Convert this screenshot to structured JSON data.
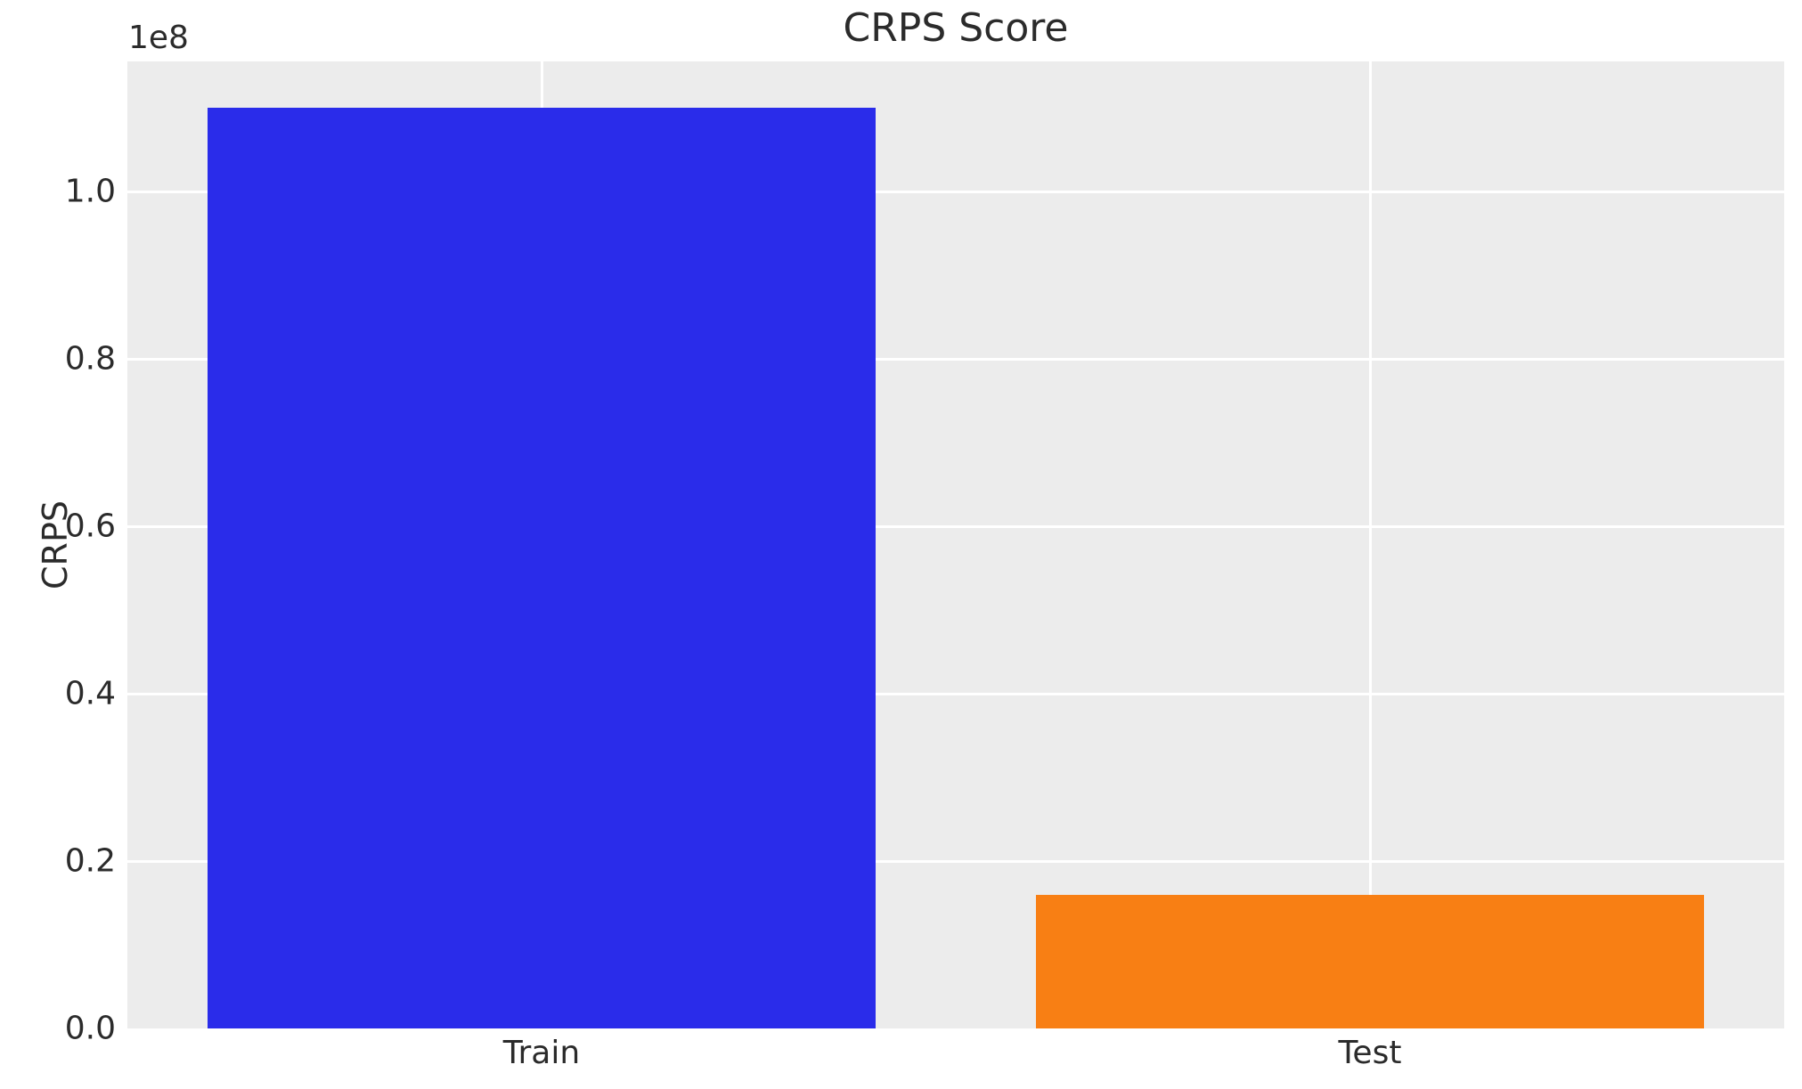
{
  "chart_data": {
    "type": "bar",
    "title": "CRPS Score",
    "xlabel": "",
    "ylabel": "CRPS",
    "y_offset_text": "1e8",
    "categories": [
      "Train",
      "Test"
    ],
    "series": [
      {
        "name": "CRPS",
        "values": [
          110000000,
          16000000
        ]
      }
    ],
    "bar_colors": [
      "#2a2cea",
      "#f87f14"
    ],
    "ylim": [
      0,
      115500000
    ],
    "yticks": [
      0,
      20000000,
      40000000,
      60000000,
      80000000,
      100000000
    ],
    "ytick_labels": [
      "0.0",
      "0.2",
      "0.4",
      "0.6",
      "0.8",
      "1.0"
    ],
    "grid": true,
    "legend": false,
    "plot_background_color": "#ececec",
    "grid_color": "#ffffff",
    "text_color": "#2b2b2b"
  }
}
